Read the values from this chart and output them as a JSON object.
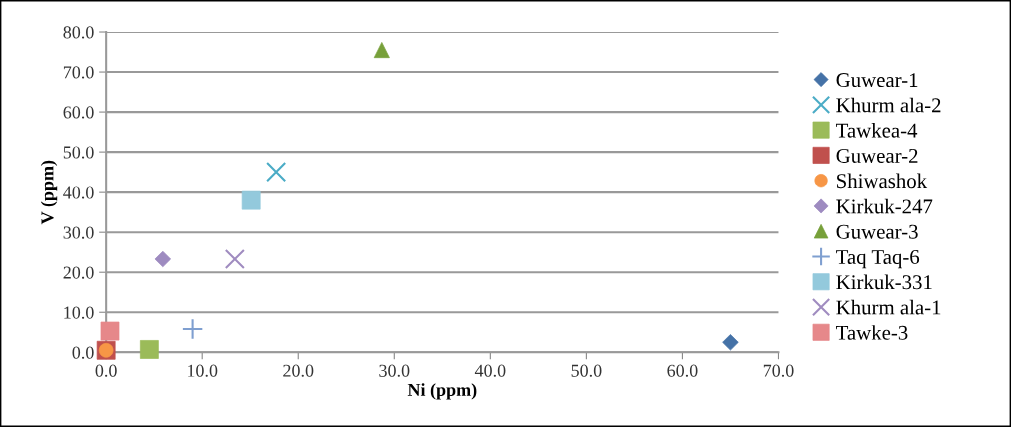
{
  "chart_data": {
    "type": "scatter",
    "xlabel": "Ni (ppm)",
    "ylabel": "V (ppm)",
    "xlim": [
      0,
      70
    ],
    "ylim": [
      0,
      80
    ],
    "xticks": [
      {
        "value": 0,
        "label": "0.0"
      },
      {
        "value": 10,
        "label": "10.0"
      },
      {
        "value": 20,
        "label": "20.0"
      },
      {
        "value": 30,
        "label": "30.0"
      },
      {
        "value": 40,
        "label": "40.0"
      },
      {
        "value": 50,
        "label": "50.0"
      },
      {
        "value": 60,
        "label": "60.0"
      },
      {
        "value": 70,
        "label": "70.0"
      }
    ],
    "yticks": [
      {
        "value": 0,
        "label": "0.0"
      },
      {
        "value": 10,
        "label": "10.0"
      },
      {
        "value": 20,
        "label": "20.0"
      },
      {
        "value": 30,
        "label": "30.0"
      },
      {
        "value": 40,
        "label": "40.0"
      },
      {
        "value": 50,
        "label": "50.0"
      },
      {
        "value": 60,
        "label": "60.0"
      },
      {
        "value": 70,
        "label": "70.0"
      },
      {
        "value": 80,
        "label": "80.0"
      }
    ],
    "grid": "y",
    "legend": "right",
    "series": [
      {
        "name": "Guwear-1",
        "color": "#4572a7",
        "marker": "diamond",
        "x": [
          65.0
        ],
        "values": [
          2.5
        ]
      },
      {
        "name": "Khurm ala-2",
        "color": "#4bacc6",
        "marker": "cross",
        "x": [
          17.7
        ],
        "values": [
          45.0
        ]
      },
      {
        "name": "Tawkea-4",
        "color": "#9bbb59",
        "marker": "square",
        "x": [
          4.5
        ],
        "values": [
          0.7
        ]
      },
      {
        "name": "Guwear-2",
        "color": "#c0504d",
        "marker": "square",
        "x": [
          0.0
        ],
        "values": [
          0.5
        ]
      },
      {
        "name": "Shiwashok",
        "color": "#f79646",
        "marker": "circle",
        "x": [
          0.0
        ],
        "values": [
          0.5
        ]
      },
      {
        "name": "Kirkuk-247",
        "color": "#9e8bc0",
        "marker": "diamond",
        "x": [
          5.9
        ],
        "values": [
          23.3
        ]
      },
      {
        "name": "Guwear-3",
        "color": "#77a03a",
        "marker": "triangle",
        "x": [
          28.7
        ],
        "values": [
          75.5
        ]
      },
      {
        "name": "Taq Taq-6",
        "color": "#7f9fd0",
        "marker": "plus",
        "x": [
          9.0
        ],
        "values": [
          5.8
        ]
      },
      {
        "name": "Kirkuk-331",
        "color": "#93c9dc",
        "marker": "square",
        "x": [
          15.1
        ],
        "values": [
          38.0
        ]
      },
      {
        "name": "Khurm ala-1",
        "color": "#a08cc0",
        "marker": "cross",
        "x": [
          13.4
        ],
        "values": [
          23.3
        ]
      },
      {
        "name": "Tawke-3",
        "color": "#e6888a",
        "marker": "square",
        "x": [
          0.4
        ],
        "values": [
          5.3
        ]
      }
    ]
  }
}
